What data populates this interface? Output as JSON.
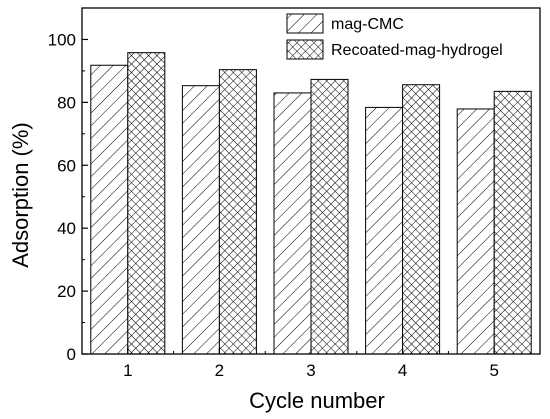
{
  "chart_data": {
    "type": "bar",
    "categories": [
      "1",
      "2",
      "3",
      "4",
      "5"
    ],
    "series": [
      {
        "name": "mag-CMC",
        "values": [
          91.8,
          85.3,
          83.0,
          78.4,
          77.9
        ],
        "pattern": "diagonal-hatch"
      },
      {
        "name": "Recoated-mag-hydrogel",
        "values": [
          95.8,
          90.4,
          87.3,
          85.6,
          83.5
        ],
        "pattern": "cross-hatch"
      }
    ],
    "xlabel": "Cycle number",
    "ylabel": "Adsorption (%)",
    "ylim": [
      0,
      110
    ],
    "yticks": [
      0,
      20,
      40,
      60,
      80,
      100
    ],
    "grid": false,
    "legend_position": "top-right",
    "colors": {
      "stroke": "#000000",
      "background": "#ffffff"
    }
  }
}
